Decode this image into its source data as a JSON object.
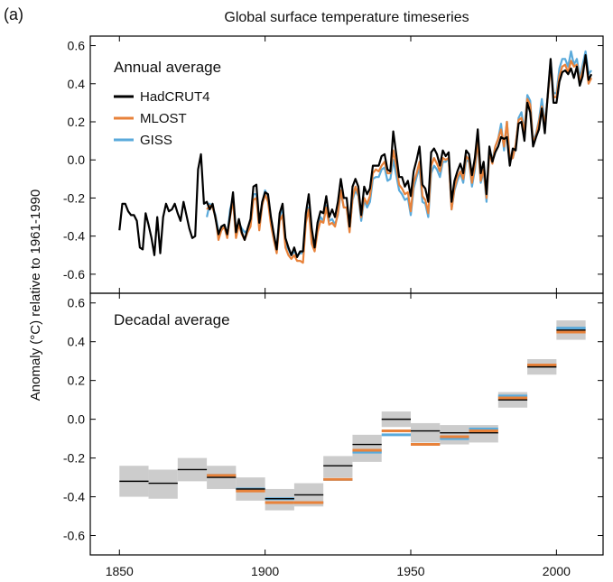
{
  "figure": {
    "panel_label": "(a)",
    "title": "Global surface temperature timeseries",
    "ylabel": "Anomaly (°C) relative to 1961-1990"
  },
  "chart_data": [
    {
      "type": "line",
      "title": "Annual average",
      "xlim": [
        1840,
        2016
      ],
      "ylim": [
        -0.7,
        0.65
      ],
      "yticks": [
        -0.6,
        -0.4,
        -0.2,
        0.0,
        0.2,
        0.4,
        0.6
      ],
      "ytick_labels": [
        "-0.6",
        "-0.4",
        "-0.2",
        "0.0",
        "0.2",
        "0.4",
        "0.6"
      ],
      "xticks": [
        1850,
        1900,
        1950,
        2000
      ],
      "grid": false,
      "legend": "top-left",
      "colors": {
        "HadCRUT4": "#000000",
        "MLOST": "#e8823a",
        "GISS": "#5aaadb"
      },
      "series": [
        {
          "name": "HadCRUT4",
          "x": [
            1850,
            1851,
            1852,
            1853,
            1854,
            1855,
            1856,
            1857,
            1858,
            1859,
            1860,
            1861,
            1862,
            1863,
            1864,
            1865,
            1866,
            1867,
            1868,
            1869,
            1870,
            1871,
            1872,
            1873,
            1874,
            1875,
            1876,
            1877,
            1878,
            1879,
            1880,
            1881,
            1882,
            1883,
            1884,
            1885,
            1886,
            1887,
            1888,
            1889,
            1890,
            1891,
            1892,
            1893,
            1894,
            1895,
            1896,
            1897,
            1898,
            1899,
            1900,
            1901,
            1902,
            1903,
            1904,
            1905,
            1906,
            1907,
            1908,
            1909,
            1910,
            1911,
            1912,
            1913,
            1914,
            1915,
            1916,
            1917,
            1918,
            1919,
            1920,
            1921,
            1922,
            1923,
            1924,
            1925,
            1926,
            1927,
            1928,
            1929,
            1930,
            1931,
            1932,
            1933,
            1934,
            1935,
            1936,
            1937,
            1938,
            1939,
            1940,
            1941,
            1942,
            1943,
            1944,
            1945,
            1946,
            1947,
            1948,
            1949,
            1950,
            1951,
            1952,
            1953,
            1954,
            1955,
            1956,
            1957,
            1958,
            1959,
            1960,
            1961,
            1962,
            1963,
            1964,
            1965,
            1966,
            1967,
            1968,
            1969,
            1970,
            1971,
            1972,
            1973,
            1974,
            1975,
            1976,
            1977,
            1978,
            1979,
            1980,
            1981,
            1982,
            1983,
            1984,
            1985,
            1986,
            1987,
            1988,
            1989,
            1990,
            1991,
            1992,
            1993,
            1994,
            1995,
            1996,
            1997,
            1998,
            1999,
            2000,
            2001,
            2002,
            2003,
            2004,
            2005,
            2006,
            2007,
            2008,
            2009,
            2010,
            2011,
            2012
          ],
          "y": [
            -0.37,
            -0.23,
            -0.23,
            -0.27,
            -0.29,
            -0.29,
            -0.32,
            -0.46,
            -0.47,
            -0.28,
            -0.34,
            -0.41,
            -0.5,
            -0.3,
            -0.49,
            -0.3,
            -0.23,
            -0.27,
            -0.26,
            -0.23,
            -0.28,
            -0.32,
            -0.22,
            -0.29,
            -0.36,
            -0.41,
            -0.4,
            -0.05,
            0.03,
            -0.23,
            -0.22,
            -0.26,
            -0.23,
            -0.31,
            -0.39,
            -0.35,
            -0.34,
            -0.39,
            -0.29,
            -0.17,
            -0.38,
            -0.31,
            -0.38,
            -0.42,
            -0.36,
            -0.31,
            -0.14,
            -0.13,
            -0.33,
            -0.22,
            -0.17,
            -0.18,
            -0.3,
            -0.39,
            -0.47,
            -0.28,
            -0.23,
            -0.41,
            -0.46,
            -0.5,
            -0.46,
            -0.51,
            -0.48,
            -0.48,
            -0.28,
            -0.18,
            -0.36,
            -0.46,
            -0.33,
            -0.27,
            -0.28,
            -0.19,
            -0.3,
            -0.26,
            -0.3,
            -0.22,
            -0.1,
            -0.2,
            -0.2,
            -0.35,
            -0.14,
            -0.1,
            -0.14,
            -0.29,
            -0.14,
            -0.18,
            -0.15,
            -0.03,
            -0.03,
            -0.03,
            0.02,
            0.03,
            -0.05,
            -0.06,
            0.15,
            0.03,
            -0.09,
            -0.09,
            -0.14,
            -0.11,
            -0.19,
            -0.06,
            0.0,
            0.07,
            -0.13,
            -0.15,
            -0.22,
            0.04,
            0.06,
            0.03,
            -0.03,
            0.05,
            0.02,
            0.04,
            -0.22,
            -0.11,
            -0.06,
            -0.02,
            -0.07,
            0.05,
            0.03,
            -0.08,
            0.01,
            0.16,
            -0.07,
            -0.01,
            -0.18,
            0.07,
            -0.01,
            0.04,
            0.07,
            0.12,
            0.11,
            0.12,
            -0.03,
            0.06,
            0.05,
            0.19,
            0.2,
            0.1,
            0.3,
            0.25,
            0.07,
            0.12,
            0.16,
            0.27,
            0.14,
            0.34,
            0.53,
            0.3,
            0.3,
            0.41,
            0.46,
            0.47,
            0.45,
            0.48,
            0.43,
            0.49,
            0.39,
            0.44,
            0.55,
            0.42,
            0.45
          ]
        },
        {
          "name": "MLOST",
          "x": [
            1880,
            1881,
            1882,
            1883,
            1884,
            1885,
            1886,
            1887,
            1888,
            1889,
            1890,
            1891,
            1892,
            1893,
            1894,
            1895,
            1896,
            1897,
            1898,
            1899,
            1900,
            1901,
            1902,
            1903,
            1904,
            1905,
            1906,
            1907,
            1908,
            1909,
            1910,
            1911,
            1912,
            1913,
            1914,
            1915,
            1916,
            1917,
            1918,
            1919,
            1920,
            1921,
            1922,
            1923,
            1924,
            1925,
            1926,
            1927,
            1928,
            1929,
            1930,
            1931,
            1932,
            1933,
            1934,
            1935,
            1936,
            1937,
            1938,
            1939,
            1940,
            1941,
            1942,
            1943,
            1944,
            1945,
            1946,
            1947,
            1948,
            1949,
            1950,
            1951,
            1952,
            1953,
            1954,
            1955,
            1956,
            1957,
            1958,
            1959,
            1960,
            1961,
            1962,
            1963,
            1964,
            1965,
            1966,
            1967,
            1968,
            1969,
            1970,
            1971,
            1972,
            1973,
            1974,
            1975,
            1976,
            1977,
            1978,
            1979,
            1980,
            1981,
            1982,
            1983,
            1984,
            1985,
            1986,
            1987,
            1988,
            1989,
            1990,
            1991,
            1992,
            1993,
            1994,
            1995,
            1996,
            1997,
            1998,
            1999,
            2000,
            2001,
            2002,
            2003,
            2004,
            2005,
            2006,
            2007,
            2008,
            2009,
            2010,
            2011,
            2012
          ],
          "y": [
            -0.26,
            -0.24,
            -0.25,
            -0.3,
            -0.42,
            -0.37,
            -0.35,
            -0.41,
            -0.3,
            -0.21,
            -0.41,
            -0.34,
            -0.39,
            -0.42,
            -0.38,
            -0.35,
            -0.21,
            -0.2,
            -0.37,
            -0.24,
            -0.18,
            -0.22,
            -0.34,
            -0.42,
            -0.49,
            -0.32,
            -0.29,
            -0.46,
            -0.5,
            -0.52,
            -0.5,
            -0.53,
            -0.53,
            -0.54,
            -0.33,
            -0.26,
            -0.44,
            -0.48,
            -0.38,
            -0.32,
            -0.33,
            -0.25,
            -0.34,
            -0.33,
            -0.35,
            -0.28,
            -0.16,
            -0.25,
            -0.25,
            -0.38,
            -0.2,
            -0.14,
            -0.18,
            -0.3,
            -0.2,
            -0.23,
            -0.19,
            -0.07,
            -0.05,
            -0.06,
            -0.03,
            -0.01,
            -0.07,
            -0.07,
            0.05,
            -0.03,
            -0.13,
            -0.15,
            -0.18,
            -0.17,
            -0.27,
            -0.12,
            -0.07,
            -0.01,
            -0.19,
            -0.21,
            -0.28,
            -0.03,
            0.01,
            -0.02,
            -0.06,
            0.01,
            0.0,
            0.01,
            -0.26,
            -0.15,
            -0.09,
            -0.06,
            -0.1,
            0.02,
            0.0,
            -0.12,
            -0.03,
            0.1,
            -0.11,
            -0.05,
            -0.2,
            0.04,
            -0.02,
            0.07,
            0.11,
            0.16,
            0.07,
            0.2,
            0.0,
            0.01,
            0.08,
            0.21,
            0.22,
            0.15,
            0.32,
            0.29,
            0.09,
            0.13,
            0.2,
            0.28,
            0.18,
            0.33,
            0.5,
            0.33,
            0.33,
            0.44,
            0.49,
            0.5,
            0.46,
            0.52,
            0.49,
            0.5,
            0.41,
            0.47,
            0.54,
            0.4,
            0.43
          ]
        },
        {
          "name": "GISS",
          "x": [
            1880,
            1881,
            1882,
            1883,
            1884,
            1885,
            1886,
            1887,
            1888,
            1889,
            1890,
            1891,
            1892,
            1893,
            1894,
            1895,
            1896,
            1897,
            1898,
            1899,
            1900,
            1901,
            1902,
            1903,
            1904,
            1905,
            1906,
            1907,
            1908,
            1909,
            1910,
            1911,
            1912,
            1913,
            1914,
            1915,
            1916,
            1917,
            1918,
            1919,
            1920,
            1921,
            1922,
            1923,
            1924,
            1925,
            1926,
            1927,
            1928,
            1929,
            1930,
            1931,
            1932,
            1933,
            1934,
            1935,
            1936,
            1937,
            1938,
            1939,
            1940,
            1941,
            1942,
            1943,
            1944,
            1945,
            1946,
            1947,
            1948,
            1949,
            1950,
            1951,
            1952,
            1953,
            1954,
            1955,
            1956,
            1957,
            1958,
            1959,
            1960,
            1961,
            1962,
            1963,
            1964,
            1965,
            1966,
            1967,
            1968,
            1969,
            1970,
            1971,
            1972,
            1973,
            1974,
            1975,
            1976,
            1977,
            1978,
            1979,
            1980,
            1981,
            1982,
            1983,
            1984,
            1985,
            1986,
            1987,
            1988,
            1989,
            1990,
            1991,
            1992,
            1993,
            1994,
            1995,
            1996,
            1997,
            1998,
            1999,
            2000,
            2001,
            2002,
            2003,
            2004,
            2005,
            2006,
            2007,
            2008,
            2009,
            2010,
            2011,
            2012
          ],
          "y": [
            -0.3,
            -0.23,
            -0.25,
            -0.29,
            -0.38,
            -0.37,
            -0.34,
            -0.4,
            -0.26,
            -0.2,
            -0.4,
            -0.33,
            -0.36,
            -0.38,
            -0.37,
            -0.33,
            -0.18,
            -0.18,
            -0.35,
            -0.23,
            -0.16,
            -0.19,
            -0.32,
            -0.4,
            -0.47,
            -0.3,
            -0.25,
            -0.44,
            -0.47,
            -0.5,
            -0.48,
            -0.5,
            -0.49,
            -0.49,
            -0.31,
            -0.25,
            -0.42,
            -0.47,
            -0.35,
            -0.3,
            -0.32,
            -0.24,
            -0.32,
            -0.31,
            -0.34,
            -0.29,
            -0.17,
            -0.25,
            -0.25,
            -0.37,
            -0.21,
            -0.16,
            -0.19,
            -0.32,
            -0.21,
            -0.25,
            -0.22,
            -0.1,
            -0.09,
            -0.09,
            -0.05,
            -0.04,
            -0.11,
            -0.1,
            0.0,
            -0.08,
            -0.16,
            -0.18,
            -0.21,
            -0.2,
            -0.29,
            -0.15,
            -0.09,
            -0.04,
            -0.22,
            -0.23,
            -0.3,
            -0.07,
            -0.03,
            -0.05,
            -0.09,
            -0.01,
            -0.01,
            0.01,
            -0.26,
            -0.16,
            -0.11,
            -0.07,
            -0.12,
            0.0,
            -0.01,
            -0.14,
            -0.05,
            0.09,
            -0.12,
            -0.06,
            -0.22,
            0.05,
            0.0,
            0.07,
            0.11,
            0.19,
            0.05,
            0.2,
            0.01,
            0.01,
            0.07,
            0.22,
            0.25,
            0.15,
            0.34,
            0.31,
            0.1,
            0.14,
            0.21,
            0.32,
            0.19,
            0.33,
            0.52,
            0.35,
            0.35,
            0.48,
            0.53,
            0.53,
            0.49,
            0.57,
            0.5,
            0.53,
            0.43,
            0.5,
            0.57,
            0.45,
            0.47
          ]
        }
      ]
    },
    {
      "type": "bar",
      "title": "Decadal average",
      "xlim": [
        1840,
        2016
      ],
      "ylim": [
        -0.7,
        0.65
      ],
      "yticks": [
        -0.6,
        -0.4,
        -0.2,
        0.0,
        0.2,
        0.4,
        0.6
      ],
      "ytick_labels": [
        "-0.6",
        "-0.4",
        "-0.2",
        "0.0",
        "0.2",
        "0.4",
        "0.6"
      ],
      "xticks": [
        1850,
        1900,
        1950,
        2000
      ],
      "xtick_labels": [
        "1850",
        "1900",
        "1950",
        "2000"
      ],
      "grid": false,
      "decades": [
        1850,
        1860,
        1870,
        1880,
        1890,
        1900,
        1910,
        1920,
        1930,
        1940,
        1950,
        1960,
        1970,
        1980,
        1990,
        2000
      ],
      "decade_length": 10,
      "uncertainty_band": {
        "low": [
          -0.4,
          -0.41,
          -0.32,
          -0.36,
          -0.42,
          -0.47,
          -0.45,
          -0.3,
          -0.22,
          -0.04,
          -0.12,
          -0.13,
          -0.12,
          0.06,
          0.23,
          0.41
        ],
        "high": [
          -0.24,
          -0.26,
          -0.2,
          -0.24,
          -0.3,
          -0.36,
          -0.33,
          -0.19,
          -0.08,
          0.04,
          -0.02,
          -0.03,
          -0.03,
          0.14,
          0.31,
          0.51
        ]
      },
      "colors": {
        "HadCRUT4": "#000000",
        "MLOST": "#e8823a",
        "GISS": "#5aaadb",
        "uncertainty": "#cccccc"
      },
      "series": [
        {
          "name": "HadCRUT4",
          "values": [
            -0.32,
            -0.33,
            -0.26,
            -0.3,
            -0.36,
            -0.41,
            -0.39,
            -0.24,
            -0.13,
            0.0,
            -0.06,
            -0.07,
            -0.07,
            0.1,
            0.27,
            0.46
          ]
        },
        {
          "name": "MLOST",
          "values": [
            null,
            null,
            null,
            -0.29,
            -0.37,
            -0.43,
            -0.43,
            -0.31,
            -0.16,
            -0.06,
            -0.13,
            -0.09,
            -0.06,
            0.11,
            0.28,
            0.45
          ]
        },
        {
          "name": "GISS",
          "values": [
            null,
            null,
            null,
            -0.29,
            -0.36,
            -0.41,
            -0.43,
            -0.31,
            -0.17,
            -0.08,
            -0.13,
            -0.1,
            -0.05,
            0.12,
            0.28,
            0.47
          ]
        }
      ]
    }
  ]
}
